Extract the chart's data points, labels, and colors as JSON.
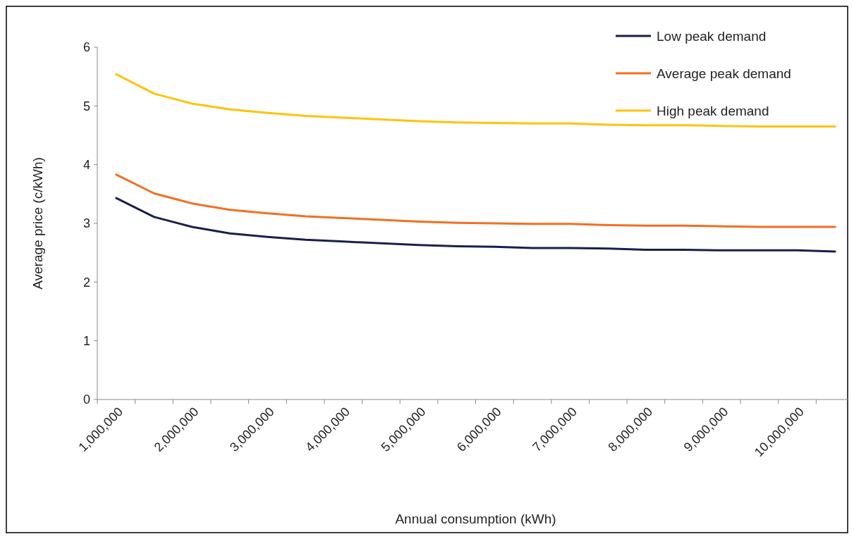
{
  "chart_data": {
    "type": "line",
    "xlabel": "Annual consumption (kWh)",
    "ylabel": "Average price (c/kWh)",
    "categories": [
      "1,000,000",
      null,
      "2,000,000",
      null,
      "3,000,000",
      null,
      "4,000,000",
      null,
      "5,000,000",
      null,
      "6,000,000",
      null,
      "7,000,000",
      null,
      "8,000,000",
      null,
      "9,000,000",
      null,
      "10,000,000",
      null
    ],
    "ylim": [
      0,
      6
    ],
    "yticks": [
      0,
      1,
      2,
      3,
      4,
      5,
      6
    ],
    "grid": false,
    "legend": "top right",
    "marker": "none",
    "line_style": "solid",
    "series": [
      {
        "name": "Low peak demand",
        "color": "#1b1f4b",
        "values": [
          3.43,
          3.11,
          2.94,
          2.83,
          2.77,
          2.72,
          2.69,
          2.66,
          2.63,
          2.61,
          2.6,
          2.58,
          2.58,
          2.57,
          2.55,
          2.55,
          2.54,
          2.54,
          2.54,
          2.52
        ]
      },
      {
        "name": "Average peak demand",
        "color": "#f36f21",
        "values": [
          3.83,
          3.51,
          3.34,
          3.23,
          3.17,
          3.12,
          3.09,
          3.06,
          3.03,
          3.01,
          3,
          2.99,
          2.99,
          2.97,
          2.96,
          2.96,
          2.95,
          2.94,
          2.94,
          2.94
        ]
      },
      {
        "name": "High peak demand",
        "color": "#ffc20e",
        "values": [
          5.54,
          5.21,
          5.04,
          4.94,
          4.88,
          4.83,
          4.8,
          4.77,
          4.74,
          4.72,
          4.71,
          4.7,
          4.7,
          4.68,
          4.67,
          4.67,
          4.66,
          4.65,
          4.65,
          4.65
        ]
      }
    ]
  }
}
